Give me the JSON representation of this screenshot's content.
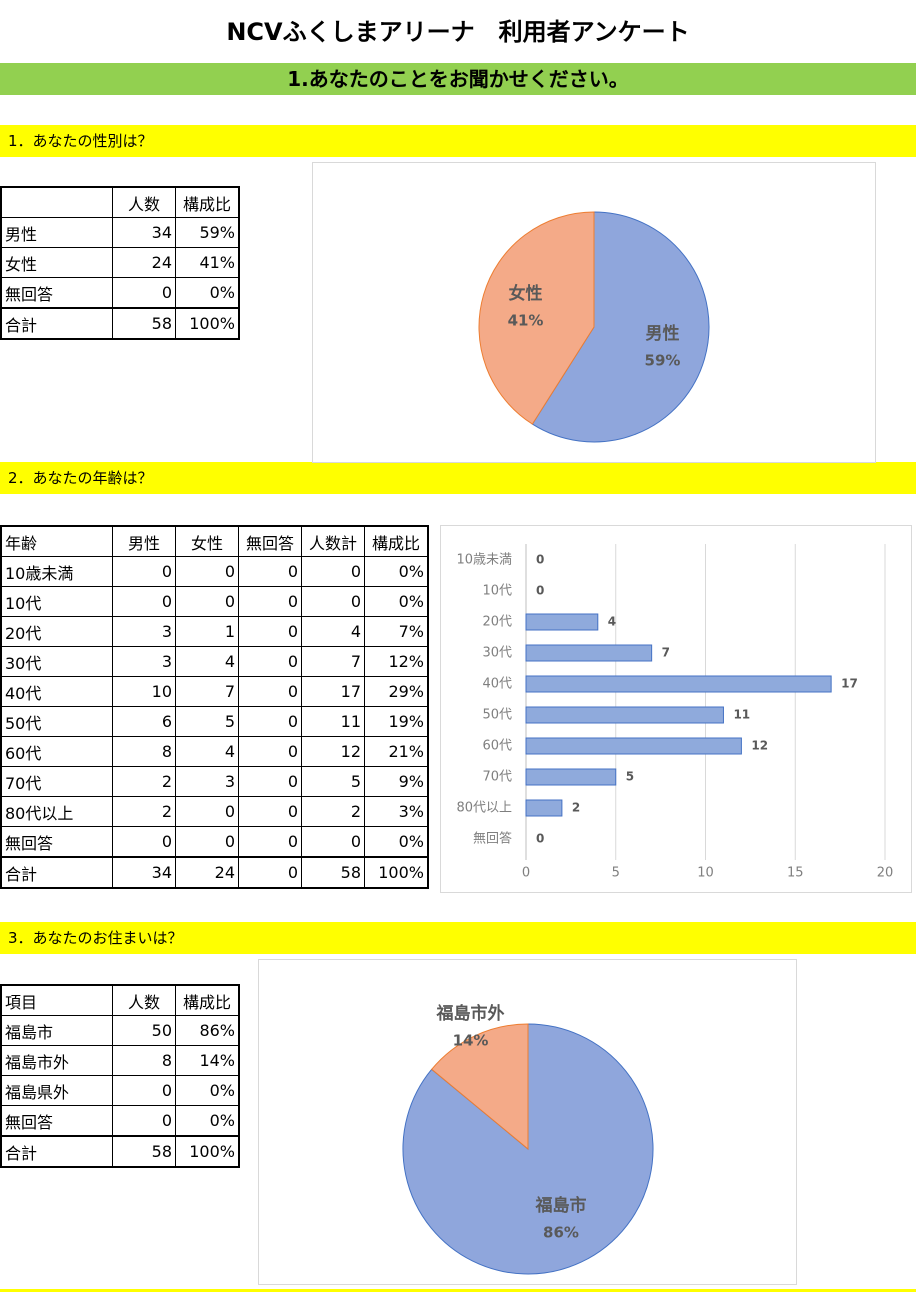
{
  "header": {
    "title": "NCVふくしまアリーナ　利用者アンケート",
    "section": "1.あなたのことをお聞かせください。"
  },
  "questions": [
    "1．あなたの性別は？",
    "2．あなたの年齢は？",
    "3．あなたのお住まいは？"
  ],
  "tables": [
    {
      "columns": [
        "人数",
        "構成比"
      ],
      "rows": [
        [
          "男性",
          34,
          "59%"
        ],
        [
          "女性",
          24,
          "41%"
        ],
        [
          "無回答",
          0,
          "0%"
        ],
        [
          "合計",
          58,
          "100%"
        ]
      ]
    },
    {
      "columns": [
        "年齢",
        "男性",
        "女性",
        "無回答",
        "人数計",
        "構成比"
      ],
      "rows": [
        [
          "10歳未満",
          0,
          0,
          0,
          0,
          "0%"
        ],
        [
          "10代",
          0,
          0,
          0,
          0,
          "0%"
        ],
        [
          "20代",
          3,
          1,
          0,
          4,
          "7%"
        ],
        [
          "30代",
          3,
          4,
          0,
          7,
          "12%"
        ],
        [
          "40代",
          10,
          7,
          0,
          17,
          "29%"
        ],
        [
          "50代",
          6,
          5,
          0,
          11,
          "19%"
        ],
        [
          "60代",
          8,
          4,
          0,
          12,
          "21%"
        ],
        [
          "70代",
          2,
          3,
          0,
          5,
          "9%"
        ],
        [
          "80代以上",
          2,
          0,
          0,
          2,
          "3%"
        ],
        [
          "無回答",
          0,
          0,
          0,
          0,
          "0%"
        ],
        [
          "合計",
          34,
          24,
          0,
          58,
          "100%"
        ]
      ]
    },
    {
      "columns": [
        "項目",
        "人数",
        "構成比"
      ],
      "rows": [
        [
          "福島市",
          50,
          "86%"
        ],
        [
          "福島市外",
          8,
          "14%"
        ],
        [
          "福島県外",
          0,
          "0%"
        ],
        [
          "無回答",
          0,
          "0%"
        ],
        [
          "合計",
          58,
          "100%"
        ]
      ]
    }
  ],
  "chart_data": [
    {
      "type": "pie",
      "categories": [
        "男性",
        "女性"
      ],
      "values": [
        59,
        41
      ],
      "value_labels": [
        "59%",
        "41%"
      ],
      "colors": [
        "#8fa6dc",
        "#f4aa88"
      ]
    },
    {
      "type": "bar",
      "orientation": "horizontal",
      "categories": [
        "10歳未満",
        "10代",
        "20代",
        "30代",
        "40代",
        "50代",
        "60代",
        "70代",
        "80代以上",
        "無回答"
      ],
      "values": [
        0,
        0,
        4,
        7,
        17,
        11,
        12,
        5,
        2,
        0
      ],
      "color": "#8faadc",
      "xlim": [
        0,
        20
      ],
      "xticks": [
        0,
        5,
        10,
        15,
        20
      ],
      "grid": true
    },
    {
      "type": "pie",
      "categories": [
        "福島市",
        "福島市外"
      ],
      "values": [
        86,
        14
      ],
      "value_labels": [
        "86%",
        "14%"
      ],
      "colors": [
        "#8fa6dc",
        "#f4aa88"
      ]
    }
  ]
}
